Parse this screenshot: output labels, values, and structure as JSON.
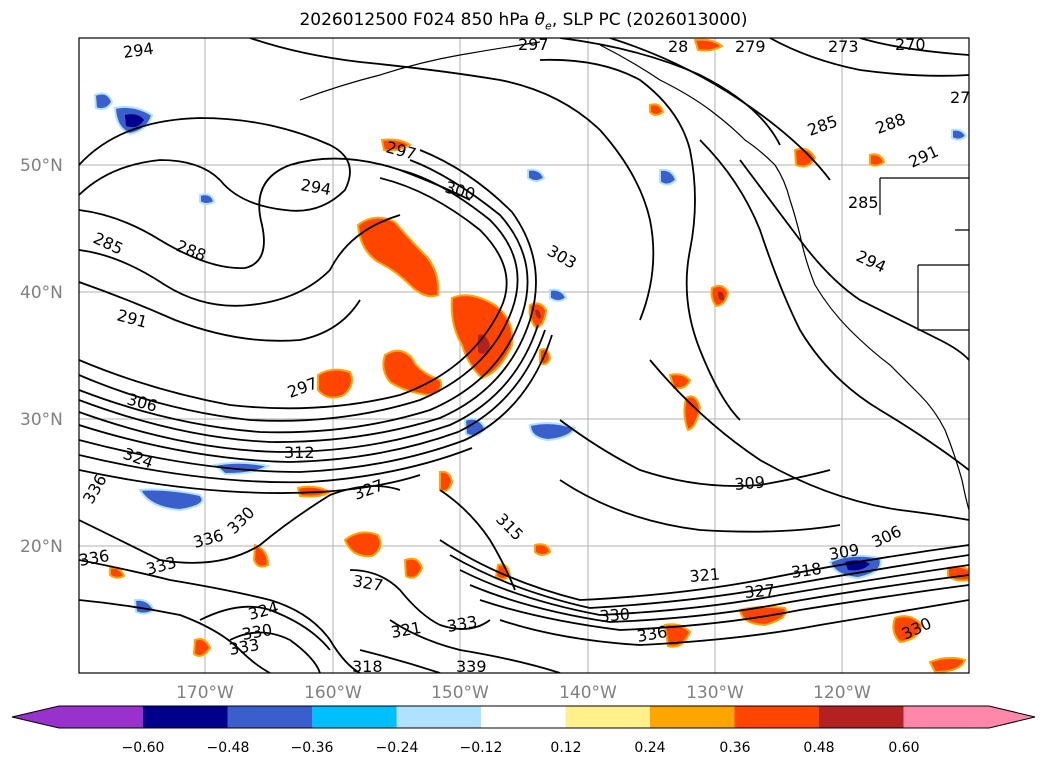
{
  "title": {
    "prefix": "2026012500 F024 850 hPa ",
    "theta_symbol": "θ",
    "theta_sub": "e",
    "suffix": ", SLP PC (2026013000)"
  },
  "lat_labels": [
    "50°N",
    "40°N",
    "30°N",
    "20°N"
  ],
  "lon_labels": [
    "170°W",
    "160°W",
    "150°W",
    "140°W",
    "130°W",
    "120°W"
  ],
  "contour_labels": [
    {
      "text": "294",
      "id": "c294-nw"
    },
    {
      "text": "297",
      "id": "c297-top"
    },
    {
      "text": "28",
      "id": "c28-top"
    },
    {
      "text": "279",
      "id": "c279-top"
    },
    {
      "text": "273",
      "id": "c273-top"
    },
    {
      "text": "270",
      "id": "c270-top"
    },
    {
      "text": "27",
      "id": "c27-right"
    },
    {
      "text": "285",
      "id": "c285-ne"
    },
    {
      "text": "288",
      "id": "c288-ne"
    },
    {
      "text": "291",
      "id": "c291-ne"
    },
    {
      "text": "297",
      "id": "c297-mid"
    },
    {
      "text": "294",
      "id": "c294-mid"
    },
    {
      "text": "300",
      "id": "c300-mid"
    },
    {
      "text": "285",
      "id": "c285-w"
    },
    {
      "text": "288",
      "id": "c288-w"
    },
    {
      "text": "303",
      "id": "c303-mid"
    },
    {
      "text": "285",
      "id": "c285-coast"
    },
    {
      "text": "294",
      "id": "c294-coast"
    },
    {
      "text": "291",
      "id": "c291-w"
    },
    {
      "text": "297",
      "id": "c297-sw"
    },
    {
      "text": "306",
      "id": "c306-w"
    },
    {
      "text": "312",
      "id": "c312-mid"
    },
    {
      "text": "324",
      "id": "c324-w"
    },
    {
      "text": "336",
      "id": "c336-w"
    },
    {
      "text": "327",
      "id": "c327-mid"
    },
    {
      "text": "309",
      "id": "c309-e"
    },
    {
      "text": "330",
      "id": "c330-sw"
    },
    {
      "text": "336",
      "id": "c336-sw"
    },
    {
      "text": "336",
      "id": "c336-far-w"
    },
    {
      "text": "333",
      "id": "c333-sw"
    },
    {
      "text": "315",
      "id": "c315-mid"
    },
    {
      "text": "309",
      "id": "c309-se"
    },
    {
      "text": "306",
      "id": "c306-se"
    },
    {
      "text": "321",
      "id": "c321-s"
    },
    {
      "text": "318",
      "id": "c318-se"
    },
    {
      "text": "327",
      "id": "c327-s"
    },
    {
      "text": "327",
      "id": "c327-se"
    },
    {
      "text": "324",
      "id": "c324-s"
    },
    {
      "text": "330",
      "id": "c330-s"
    },
    {
      "text": "330",
      "id": "c330-s2"
    },
    {
      "text": "333",
      "id": "c333-s"
    },
    {
      "text": "321",
      "id": "c321-s2"
    },
    {
      "text": "333",
      "id": "c333-s2"
    },
    {
      "text": "336",
      "id": "c336-s"
    },
    {
      "text": "318",
      "id": "c318-s"
    },
    {
      "text": "339",
      "id": "c339-s"
    },
    {
      "text": "330",
      "id": "c330-se"
    }
  ],
  "colorbar": {
    "ticks": [
      "−0.60",
      "−0.48",
      "−0.36",
      "−0.24",
      "−0.12",
      "0.12",
      "0.24",
      "0.36",
      "0.48",
      "0.60"
    ],
    "colors": [
      "#9932cc",
      "#00008b",
      "#3a5fcd",
      "#00bfff",
      "#b0e2ff",
      "#ffffff",
      "#fff08c",
      "#ffa500",
      "#ff4500",
      "#b22222",
      "#ff88aa",
      "#ff88aa"
    ],
    "extend": "both"
  },
  "colors": {
    "contour": "#000000",
    "grid": "#808080",
    "positive_strong": "#ff4500",
    "positive_mid": "#ffa500",
    "positive_weak": "#fff08c",
    "negative_mid": "#3a5fcd",
    "negative_weak": "#b0e2ff"
  }
}
